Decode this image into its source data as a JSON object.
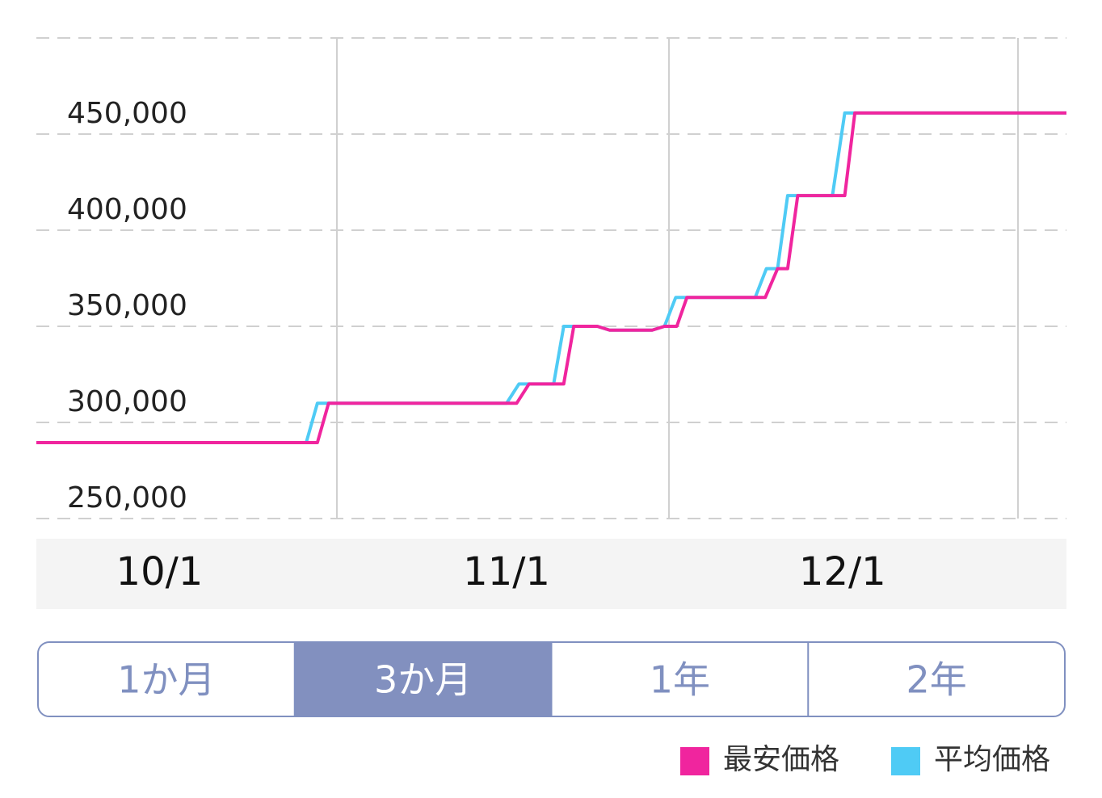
{
  "chart_data": {
    "type": "line",
    "xlim": [
      -11,
      81
    ],
    "xticks": [
      {
        "value": 0,
        "label": "10/1"
      },
      {
        "value": 31,
        "label": "11/1"
      },
      {
        "value": 61,
        "label": "12/1"
      }
    ],
    "ylim": [
      250000,
      500000
    ],
    "yticks": [
      {
        "value": 250000,
        "label": "250,000"
      },
      {
        "value": 300000,
        "label": "300,000"
      },
      {
        "value": 350000,
        "label": "350,000"
      },
      {
        "value": 400000,
        "label": "400,000"
      },
      {
        "value": 450000,
        "label": "450,000"
      }
    ],
    "grid": true,
    "legend": "bottom-right",
    "series": [
      {
        "name": "最安価格",
        "color": "#f0259e",
        "x": [
          -11,
          14.1,
          15.1,
          31.9,
          33.0,
          36.1,
          37.0,
          39.1,
          40.2,
          44.0,
          45.1,
          46.2,
          47.1,
          54.1,
          55.2,
          56.1,
          57.0,
          61.2,
          62.1,
          81
        ],
        "values": [
          289500,
          289500,
          310000,
          310000,
          320000,
          320000,
          350000,
          350000,
          348000,
          348000,
          350000,
          350000,
          365000,
          365000,
          380000,
          380000,
          418000,
          418000,
          461000,
          461000
        ]
      },
      {
        "name": "平均価格",
        "color": "#4fcbf5",
        "x": [
          -11,
          13.1,
          14.1,
          31.0,
          32.1,
          35.2,
          36.1,
          39.1,
          40.2,
          44.0,
          45.1,
          46.1,
          53.2,
          54.2,
          55.2,
          56.1,
          60.1,
          61.2,
          81
        ],
        "values": [
          289500,
          289500,
          310000,
          310000,
          320000,
          320000,
          350000,
          350000,
          348000,
          348000,
          350000,
          365000,
          365000,
          380000,
          380000,
          418000,
          418000,
          461000,
          461000
        ]
      }
    ]
  },
  "range_tabs": {
    "options": [
      "1か月",
      "3か月",
      "1年",
      "2年"
    ],
    "selected": 1
  }
}
